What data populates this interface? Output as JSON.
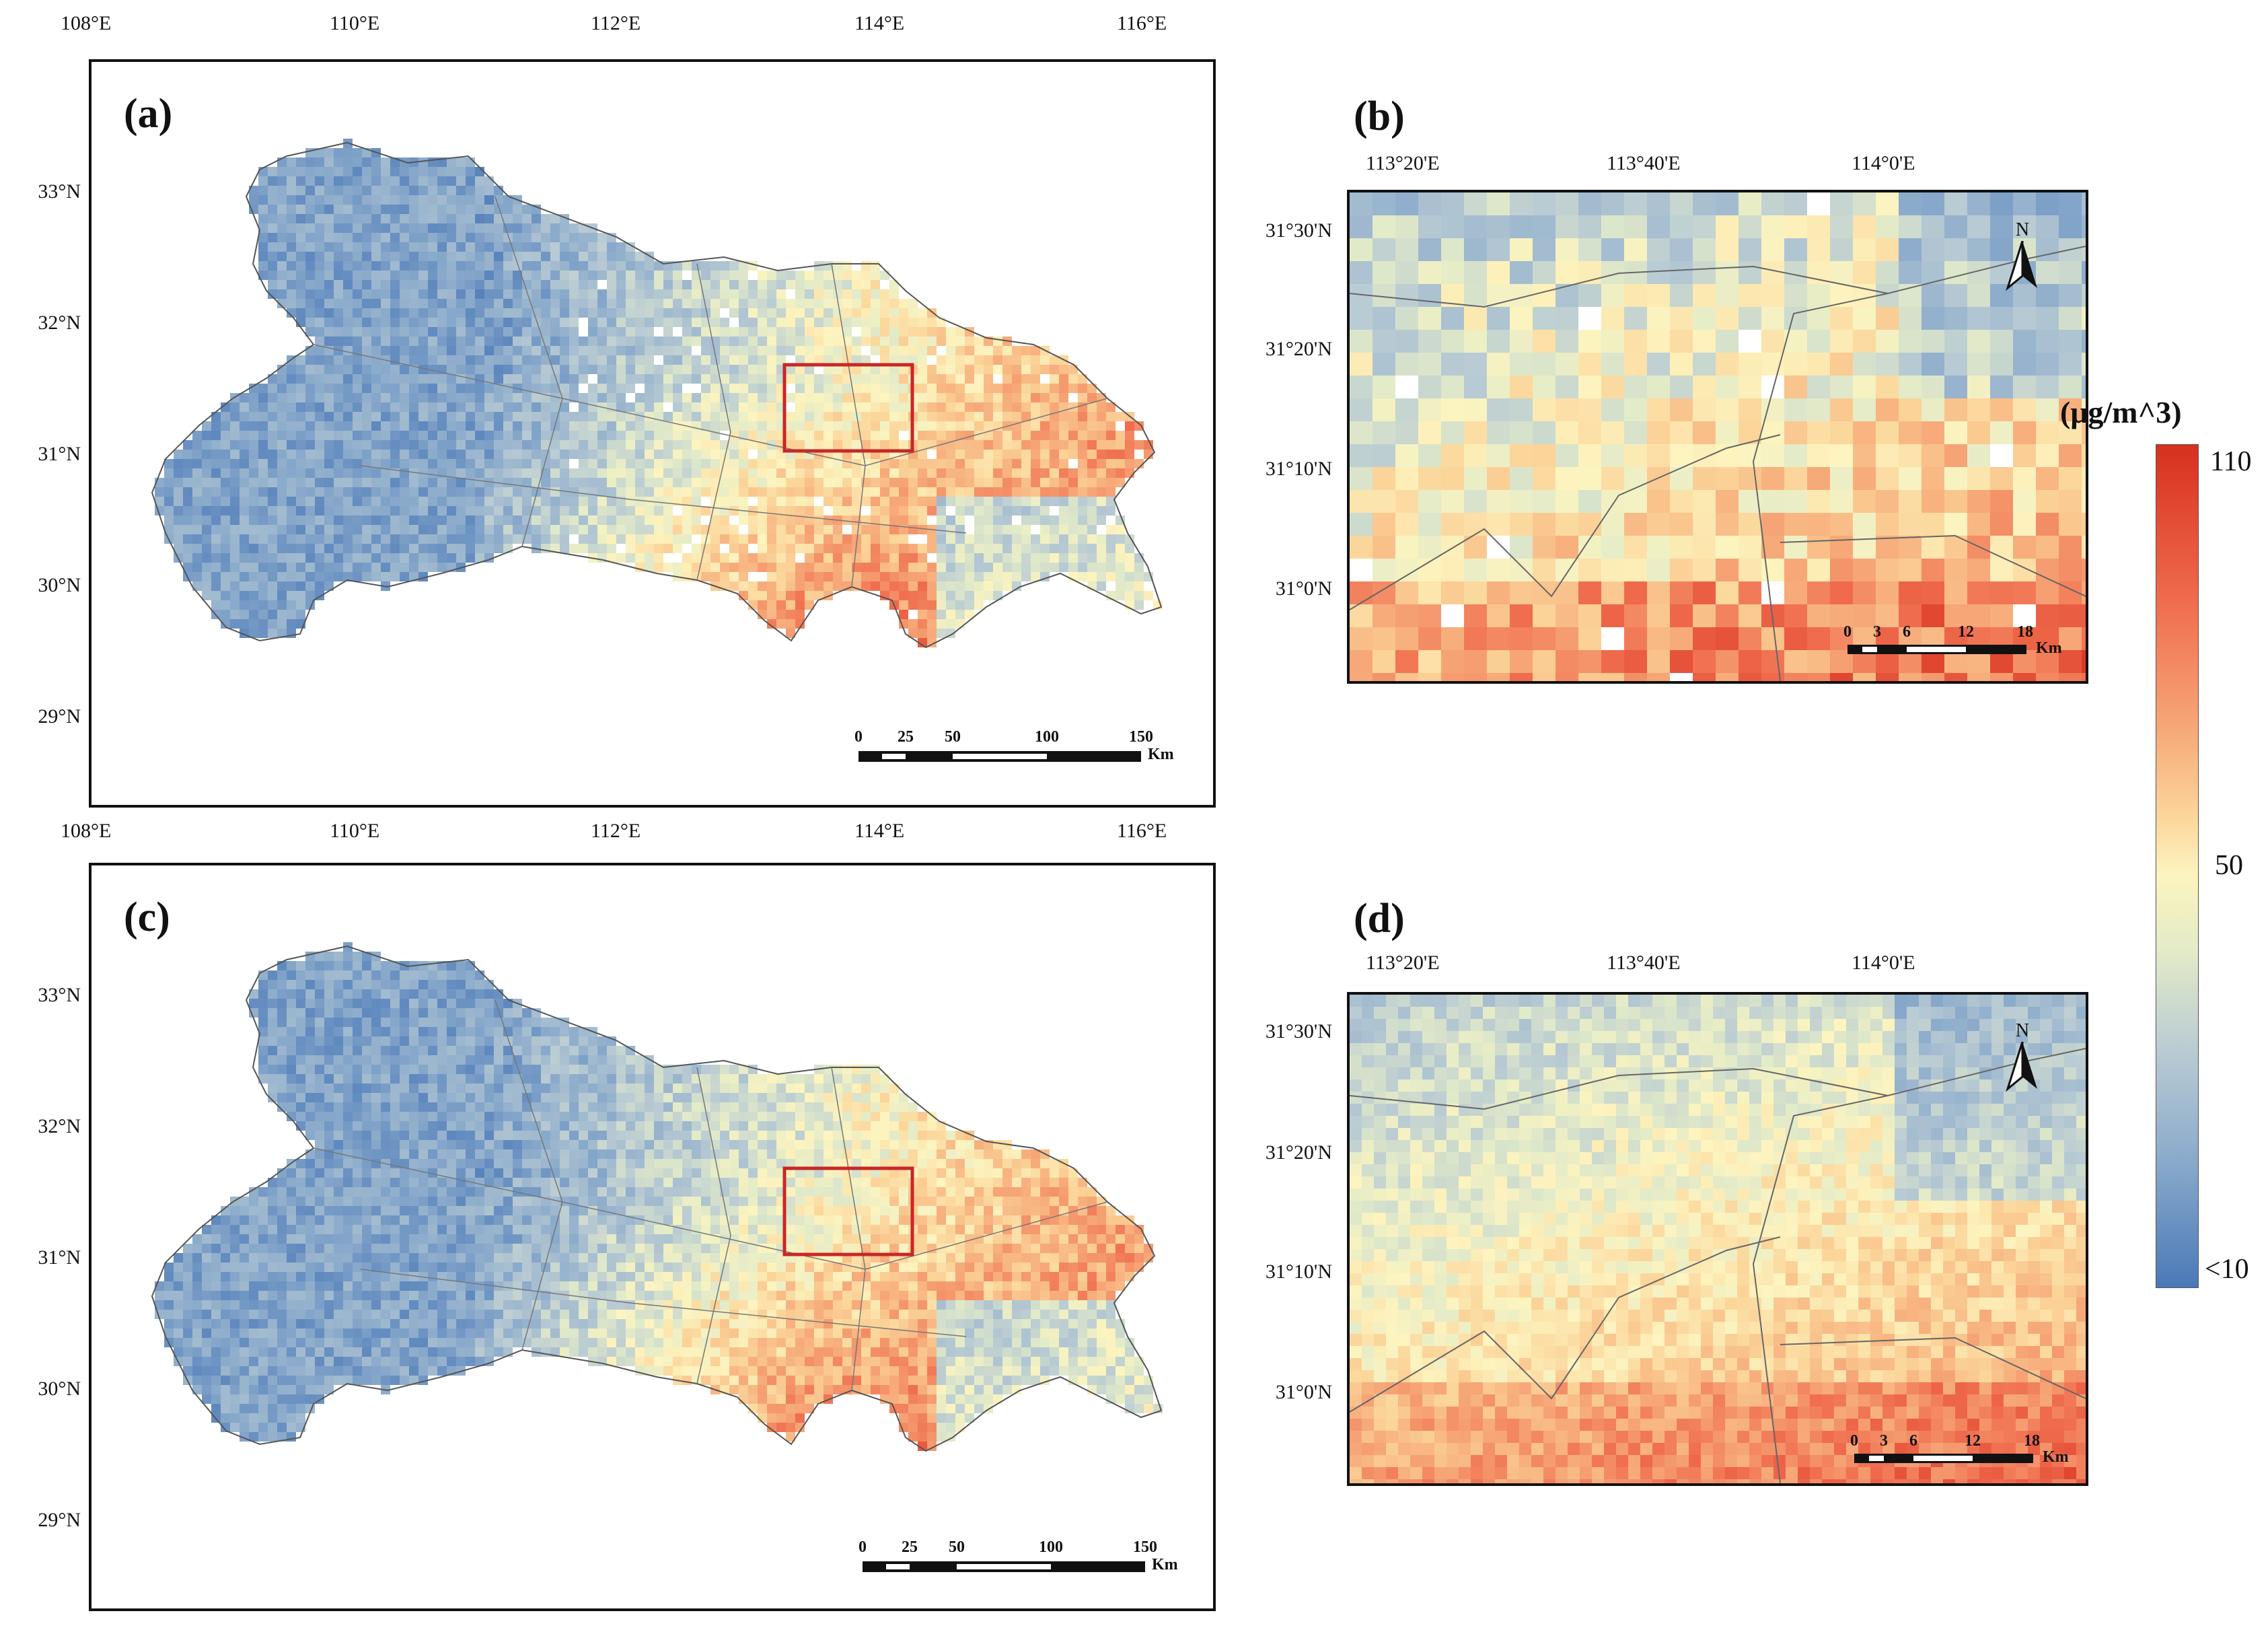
{
  "legend": {
    "title": "(μg/m^3)",
    "max_label": "110",
    "mid_label": "50",
    "min_label": "<10",
    "colors": [
      "#d7301f",
      "#f6a576",
      "#fdf4bf",
      "#b9cbd3",
      "#4a78b8"
    ]
  },
  "panels": [
    {
      "id": "a",
      "label": "(a)",
      "lon_ticks": [
        "108°E",
        "110°E",
        "112°E",
        "114°E",
        "116°E"
      ],
      "lat_ticks": [
        "33°N",
        "32°N",
        "31°N",
        "30°N",
        "29°N"
      ],
      "scale_ticks": [
        "0",
        "25",
        "50",
        "100",
        "150"
      ],
      "scale_unit": "Km",
      "pattern": "sparse"
    },
    {
      "id": "b",
      "label": "(b)",
      "lon_ticks": [
        "113°20'E",
        "113°40'E",
        "114°0'E"
      ],
      "lat_ticks": [
        "31°30'N",
        "31°20'N",
        "31°10'N",
        "31°0'N"
      ],
      "scale_ticks": [
        "0",
        "3",
        "6",
        "12",
        "18"
      ],
      "scale_unit": "Km",
      "north_label": "N"
    },
    {
      "id": "c",
      "label": "(c)",
      "lon_ticks": [
        "108°E",
        "110°E",
        "112°E",
        "114°E",
        "116°E"
      ],
      "lat_ticks": [
        "33°N",
        "32°N",
        "31°N",
        "30°N",
        "29°N"
      ],
      "scale_ticks": [
        "0",
        "25",
        "50",
        "100",
        "150"
      ],
      "scale_unit": "Km",
      "pattern": "dense"
    },
    {
      "id": "d",
      "label": "(d)",
      "lon_ticks": [
        "113°20'E",
        "113°40'E",
        "114°0'E"
      ],
      "lat_ticks": [
        "31°30'N",
        "31°20'N",
        "31°10'N",
        "31°0'N"
      ],
      "scale_ticks": [
        "0",
        "3",
        "6",
        "12",
        "18"
      ],
      "scale_unit": "Km",
      "north_label": "N"
    }
  ]
}
